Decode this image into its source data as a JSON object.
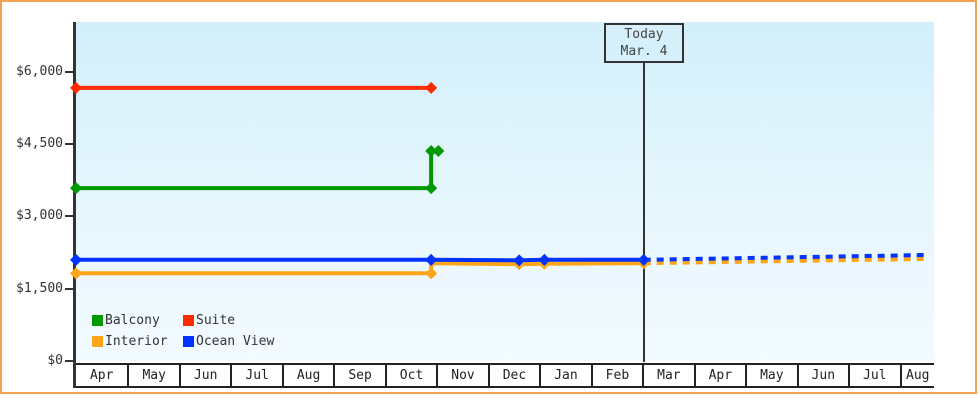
{
  "window": {
    "frame_border_color": "#F0A355",
    "today_box": {
      "line1": "Today",
      "line2": "Mar. 4"
    }
  },
  "legend": [
    {
      "label": "Balcony",
      "color": "#009900"
    },
    {
      "label": "Suite",
      "color": "#FF2B00"
    },
    {
      "label": "Interior",
      "color": "#FFA519"
    },
    {
      "label": "Ocean View",
      "color": "#0033FF"
    }
  ],
  "chart_data": {
    "type": "line",
    "title": "",
    "xlabel": "",
    "ylabel": "",
    "x_axis": {
      "unit": "months (0 = first Apr shown)",
      "months": [
        "Apr",
        "May",
        "Jun",
        "Jul",
        "Aug",
        "Sep",
        "Oct",
        "Nov",
        "Dec",
        "Jan",
        "Feb",
        "Mar",
        "Apr",
        "May",
        "Jun",
        "Jul",
        "Aug"
      ]
    },
    "y_axis": {
      "min": 0,
      "max": 7038,
      "ticks": [
        {
          "value": 0,
          "label": "$0"
        },
        {
          "value": 1500,
          "label": "$1,500"
        },
        {
          "value": 3000,
          "label": "$3,000"
        },
        {
          "value": 4500,
          "label": "$4,500"
        },
        {
          "value": 6000,
          "label": "$6,000"
        }
      ]
    },
    "grid": false,
    "legend_position": "bottom-left inside plot",
    "today_marker": {
      "x": 11.03,
      "label": "Today Mar. 4"
    },
    "series": [
      {
        "name": "Suite",
        "color": "#FF2B00",
        "style": "solid",
        "points": [
          {
            "x": 0,
            "y": 5670,
            "marker": true
          },
          {
            "x": 6.9,
            "y": 5670,
            "marker": true
          }
        ]
      },
      {
        "name": "Balcony",
        "color": "#009900",
        "style": "solid",
        "points": [
          {
            "x": 0,
            "y": 3590,
            "marker": true
          },
          {
            "x": 6.9,
            "y": 3590,
            "marker": true
          },
          {
            "x": 6.9,
            "y": 4360,
            "marker": true
          },
          {
            "x": 7.04,
            "y": 4360,
            "marker": true
          }
        ]
      },
      {
        "name": "Interior",
        "color": "#FFA519",
        "style": "solid",
        "points": [
          {
            "x": 0,
            "y": 1820,
            "marker": true
          },
          {
            "x": 6.9,
            "y": 1820,
            "marker": true
          },
          {
            "x": 6.9,
            "y": 2030,
            "marker": false
          },
          {
            "x": 8.61,
            "y": 2010,
            "marker": true
          },
          {
            "x": 9.1,
            "y": 2020,
            "marker": true
          },
          {
            "x": 11.03,
            "y": 2030,
            "marker": true
          }
        ]
      },
      {
        "name": "Interior forecast",
        "color": "#FFA519",
        "style": "dashed",
        "points": [
          {
            "x": 11.03,
            "y": 2030,
            "marker": false
          },
          {
            "x": 16.53,
            "y": 2120,
            "marker": false
          }
        ]
      },
      {
        "name": "Ocean View",
        "color": "#0033FF",
        "style": "solid",
        "points": [
          {
            "x": 0,
            "y": 2100,
            "marker": true
          },
          {
            "x": 6.9,
            "y": 2100,
            "marker": true
          },
          {
            "x": 8.61,
            "y": 2090,
            "marker": true
          },
          {
            "x": 9.1,
            "y": 2100,
            "marker": true
          },
          {
            "x": 11.03,
            "y": 2100,
            "marker": true
          }
        ]
      },
      {
        "name": "Ocean View forecast",
        "color": "#0033FF",
        "style": "dashed",
        "points": [
          {
            "x": 11.03,
            "y": 2100,
            "marker": false
          },
          {
            "x": 16.53,
            "y": 2200,
            "marker": false
          }
        ]
      }
    ]
  }
}
